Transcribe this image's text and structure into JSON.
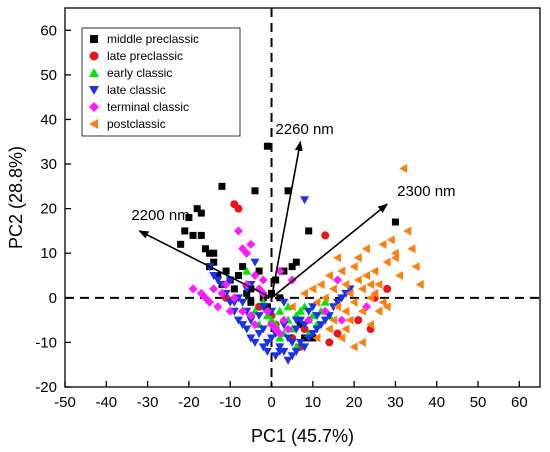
{
  "chart_data": {
    "type": "scatter",
    "xlabel": "PC1 (45.7%)",
    "ylabel": "PC2 (28.8%)",
    "xlim": [
      -50,
      65
    ],
    "ylim": [
      -20,
      65
    ],
    "xticks": [
      -50,
      -40,
      -30,
      -20,
      -10,
      0,
      10,
      20,
      30,
      40,
      50,
      60
    ],
    "yticks": [
      -20,
      -10,
      0,
      10,
      20,
      30,
      40,
      50,
      60
    ],
    "grid": false,
    "legend_position": "top-left",
    "reference_lines": {
      "x": 0,
      "y": 0,
      "style": "dashed"
    },
    "series": [
      {
        "name": "middle preclassic",
        "marker": "square",
        "color": "#000000",
        "points": [
          [
            -22,
            12
          ],
          [
            -21,
            15
          ],
          [
            -20,
            18
          ],
          [
            -19,
            14
          ],
          [
            -18,
            20
          ],
          [
            -17,
            19
          ],
          [
            -17,
            14
          ],
          [
            -16,
            11
          ],
          [
            -15,
            10
          ],
          [
            -15,
            7
          ],
          [
            -14,
            8
          ],
          [
            -14,
            10
          ],
          [
            -13,
            5
          ],
          [
            -12,
            3
          ],
          [
            -12,
            25
          ],
          [
            -11,
            6
          ],
          [
            -10,
            4
          ],
          [
            -9,
            2
          ],
          [
            -8,
            5
          ],
          [
            -7,
            7
          ],
          [
            -6,
            1
          ],
          [
            -5,
            2
          ],
          [
            -5,
            -1
          ],
          [
            -4,
            24
          ],
          [
            -3,
            6
          ],
          [
            -2,
            0
          ],
          [
            -1,
            -2
          ],
          [
            0,
            1
          ],
          [
            1,
            4
          ],
          [
            2,
            0
          ],
          [
            3,
            6
          ],
          [
            4,
            24
          ],
          [
            5,
            7
          ],
          [
            6,
            8
          ],
          [
            7,
            -6
          ],
          [
            8,
            -9
          ],
          [
            9,
            15
          ],
          [
            10,
            -9
          ],
          [
            -1,
            34
          ],
          [
            30,
            17
          ]
        ]
      },
      {
        "name": "late preclassic",
        "marker": "circle",
        "color": "#e8141a",
        "points": [
          [
            -9,
            21
          ],
          [
            -8,
            20
          ],
          [
            -11,
            0
          ],
          [
            -3,
            -2
          ],
          [
            0,
            -4
          ],
          [
            1,
            -6
          ],
          [
            5,
            -9
          ],
          [
            7,
            -11
          ],
          [
            8,
            -7
          ],
          [
            13,
            14
          ],
          [
            14,
            -10
          ],
          [
            16,
            -8
          ],
          [
            21,
            -5
          ],
          [
            24,
            -7
          ],
          [
            28,
            2
          ],
          [
            25,
            0
          ]
        ]
      },
      {
        "name": "early classic",
        "marker": "triangle-up",
        "color": "#00e600",
        "points": [
          [
            -6,
            6
          ],
          [
            -2,
            -1
          ],
          [
            -1,
            -4
          ],
          [
            0,
            -5
          ],
          [
            1,
            -6
          ],
          [
            2,
            -3
          ],
          [
            3,
            -8
          ],
          [
            4,
            -5
          ],
          [
            5,
            -7
          ],
          [
            6,
            -4
          ],
          [
            7,
            -3
          ],
          [
            8,
            -2
          ],
          [
            9,
            -5
          ],
          [
            10,
            -4
          ],
          [
            11,
            -6
          ],
          [
            12,
            -3
          ],
          [
            14,
            -4
          ],
          [
            4,
            -2
          ],
          [
            2,
            -9
          ],
          [
            -3,
            -6
          ],
          [
            -4,
            -3
          ],
          [
            6,
            -11
          ],
          [
            9,
            -8
          ],
          [
            13,
            -1
          ]
        ]
      },
      {
        "name": "late classic",
        "marker": "triangle-down",
        "color": "#1a33e6",
        "points": [
          [
            -15,
            7
          ],
          [
            -14,
            5
          ],
          [
            -13,
            4
          ],
          [
            -12,
            3
          ],
          [
            -11,
            1
          ],
          [
            -10,
            -1
          ],
          [
            -9,
            -3
          ],
          [
            -8,
            -5
          ],
          [
            -7,
            -6
          ],
          [
            -6,
            -7
          ],
          [
            -5,
            -9
          ],
          [
            -4,
            -10
          ],
          [
            -3,
            -8
          ],
          [
            -2,
            -11
          ],
          [
            -1,
            -12
          ],
          [
            0,
            -9
          ],
          [
            1,
            -13
          ],
          [
            2,
            -11
          ],
          [
            3,
            -12
          ],
          [
            4,
            -14
          ],
          [
            5,
            -13
          ],
          [
            6,
            -12
          ],
          [
            7,
            -10
          ],
          [
            8,
            -11
          ],
          [
            9,
            -9
          ],
          [
            10,
            -8
          ],
          [
            11,
            -7
          ],
          [
            12,
            -6
          ],
          [
            13,
            -5
          ],
          [
            14,
            -4
          ],
          [
            15,
            -2
          ],
          [
            16,
            -1
          ],
          [
            17,
            0
          ],
          [
            18,
            1
          ],
          [
            19,
            2
          ],
          [
            -7,
            -1
          ],
          [
            -6,
            -3
          ],
          [
            -5,
            -5
          ],
          [
            -3,
            -4
          ],
          [
            -2,
            -7
          ],
          [
            0,
            -3
          ],
          [
            1,
            -8
          ],
          [
            3,
            -6
          ],
          [
            4,
            -9
          ],
          [
            5,
            -10
          ],
          [
            6,
            -7
          ],
          [
            7,
            -5
          ],
          [
            8,
            -6
          ],
          [
            9,
            -3
          ],
          [
            10,
            -2
          ],
          [
            11,
            -4
          ],
          [
            -1,
            -10
          ],
          [
            2,
            -12
          ],
          [
            6,
            -5
          ],
          [
            8,
            22
          ],
          [
            -4,
            8
          ],
          [
            -5,
            3
          ],
          [
            -6,
            2
          ],
          [
            -8,
            0
          ],
          [
            -9,
            -1
          ],
          [
            -10,
            4
          ],
          [
            3,
            -1
          ],
          [
            -2,
            -2
          ]
        ]
      },
      {
        "name": "terminal classic",
        "marker": "diamond",
        "color": "#ff1aff",
        "points": [
          [
            -19,
            2
          ],
          [
            -17,
            1
          ],
          [
            -16,
            0
          ],
          [
            -15,
            -1
          ],
          [
            -14,
            2
          ],
          [
            -13,
            -2
          ],
          [
            -12,
            1
          ],
          [
            -11,
            3
          ],
          [
            -10,
            -3
          ],
          [
            -9,
            0
          ],
          [
            -8,
            15
          ],
          [
            -7,
            11
          ],
          [
            -6,
            10
          ],
          [
            -5,
            12
          ],
          [
            -4,
            5
          ],
          [
            -3,
            2
          ],
          [
            -2,
            4
          ],
          [
            -1,
            -3
          ],
          [
            0,
            -6
          ],
          [
            1,
            -7
          ],
          [
            2,
            -8
          ],
          [
            3,
            -5
          ],
          [
            4,
            -7
          ],
          [
            -7,
            -3
          ],
          [
            -5,
            -4
          ],
          [
            -4,
            -6
          ],
          [
            -6,
            3
          ],
          [
            -2,
            1
          ],
          [
            2,
            6
          ],
          [
            5,
            4
          ],
          [
            16,
            4
          ],
          [
            17,
            -5
          ],
          [
            23,
            -2
          ],
          [
            9,
            -5
          ],
          [
            13,
            -3
          ]
        ]
      },
      {
        "name": "postclassic",
        "marker": "triangle-left",
        "color": "#ff7f0e",
        "points": [
          [
            5,
            -2
          ],
          [
            8,
            1
          ],
          [
            10,
            2
          ],
          [
            11,
            -1
          ],
          [
            12,
            3
          ],
          [
            13,
            0
          ],
          [
            14,
            5
          ],
          [
            15,
            2
          ],
          [
            16,
            -2
          ],
          [
            17,
            6
          ],
          [
            18,
            3
          ],
          [
            19,
            1
          ],
          [
            20,
            7
          ],
          [
            20,
            -1
          ],
          [
            21,
            4
          ],
          [
            21,
            9
          ],
          [
            22,
            2
          ],
          [
            22,
            -3
          ],
          [
            23,
            5
          ],
          [
            23,
            11
          ],
          [
            24,
            0
          ],
          [
            24,
            -6
          ],
          [
            25,
            6
          ],
          [
            26,
            3
          ],
          [
            27,
            -1
          ],
          [
            28,
            8
          ],
          [
            29,
            13
          ],
          [
            30,
            10
          ],
          [
            31,
            5
          ],
          [
            32,
            29
          ],
          [
            33,
            15
          ],
          [
            34,
            11
          ],
          [
            35,
            7
          ],
          [
            36,
            3
          ],
          [
            30,
            9
          ],
          [
            27,
            12
          ],
          [
            26,
            -3
          ],
          [
            25,
            1
          ],
          [
            19,
            -5
          ],
          [
            18,
            -7
          ],
          [
            17,
            -9
          ],
          [
            15,
            -5
          ],
          [
            14,
            -7
          ],
          [
            20,
            -11
          ],
          [
            22,
            -10
          ],
          [
            11,
            -9
          ],
          [
            16,
            9
          ],
          [
            18,
            -3
          ],
          [
            24,
            3
          ],
          [
            28,
            -2
          ]
        ]
      }
    ],
    "vectors": [
      {
        "label": "2200 nm",
        "to": [
          -32,
          15
        ]
      },
      {
        "label": "2260 nm",
        "to": [
          7,
          35
        ]
      },
      {
        "label": "2300 nm",
        "to": [
          28,
          21
        ]
      }
    ]
  }
}
